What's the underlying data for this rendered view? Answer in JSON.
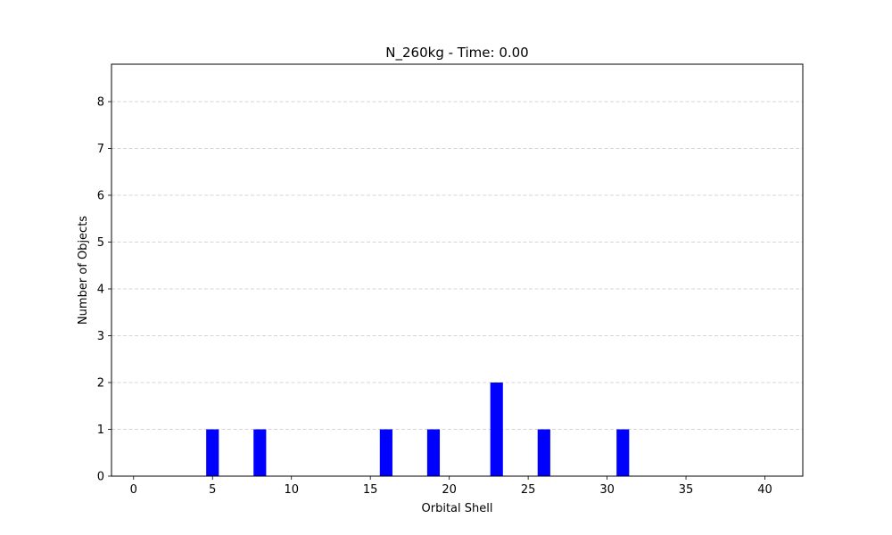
{
  "chart_data": {
    "type": "bar",
    "title": "N_260kg - Time: 0.00",
    "xlabel": "Orbital Shell",
    "ylabel": "Number of Objects",
    "x": [
      5,
      8,
      16,
      19,
      23,
      26,
      31
    ],
    "values": [
      1,
      1,
      1,
      1,
      2,
      1,
      1
    ],
    "xlim": [
      -1.4,
      42.4
    ],
    "ylim": [
      0,
      8.8
    ],
    "xticks": [
      0,
      5,
      10,
      15,
      20,
      25,
      30,
      35,
      40
    ],
    "yticks": [
      0,
      1,
      2,
      3,
      4,
      5,
      6,
      7,
      8
    ],
    "bar_width": 0.8,
    "grid": "y-dashed",
    "bar_color": "#0000ff",
    "grid_color": "#b0b0b0",
    "legend": "none"
  }
}
